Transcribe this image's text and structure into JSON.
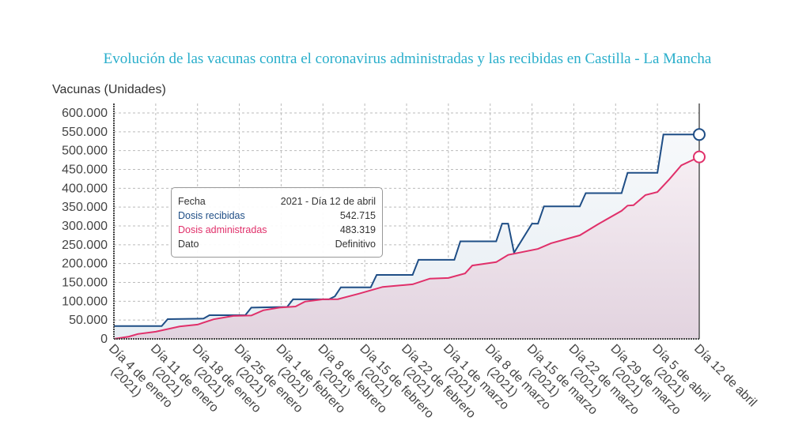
{
  "chart_data": {
    "type": "line",
    "title": "Evolución de las vacunas contra el coronavirus administradas y las recibidas en Castilla - La Mancha",
    "ylabel": "Vacunas (Unidades)",
    "xlabel": "",
    "ylim": [
      0,
      600000
    ],
    "xlim_days": [
      0,
      98
    ],
    "grid": true,
    "y_ticks": [
      {
        "value": 0,
        "label": "0"
      },
      {
        "value": 50000,
        "label": "50.000"
      },
      {
        "value": 100000,
        "label": "100.000"
      },
      {
        "value": 150000,
        "label": "150.000"
      },
      {
        "value": 200000,
        "label": "200.000"
      },
      {
        "value": 250000,
        "label": "250.000"
      },
      {
        "value": 300000,
        "label": "300.000"
      },
      {
        "value": 350000,
        "label": "350.000"
      },
      {
        "value": 400000,
        "label": "400.000"
      },
      {
        "value": 450000,
        "label": "450.000"
      },
      {
        "value": 500000,
        "label": "500.000"
      },
      {
        "value": 550000,
        "label": "550.000"
      },
      {
        "value": 600000,
        "label": "600.000"
      }
    ],
    "x_ticks": [
      {
        "day": 0,
        "line1": "Día 4 de enero",
        "line2": "(2021)"
      },
      {
        "day": 7,
        "line1": "Día 11 de enero",
        "line2": "(2021)"
      },
      {
        "day": 14,
        "line1": "Día 18 de enero",
        "line2": "(2021)"
      },
      {
        "day": 21,
        "line1": "Día 25 de enero",
        "line2": "(2021)"
      },
      {
        "day": 28,
        "line1": "Día 1 de febrero",
        "line2": "(2021)"
      },
      {
        "day": 35,
        "line1": "Día 8 de febrero",
        "line2": "(2021)"
      },
      {
        "day": 42,
        "line1": "Día 15 de febrero",
        "line2": "(2021)"
      },
      {
        "day": 49,
        "line1": "Día 22 de febrero",
        "line2": "(2021)"
      },
      {
        "day": 56,
        "line1": "Día 1 de marzo",
        "line2": "(2021)"
      },
      {
        "day": 63,
        "line1": "Día 8 de marzo",
        "line2": "(2021)"
      },
      {
        "day": 70,
        "line1": "Día 15 de marzo",
        "line2": "(2021)"
      },
      {
        "day": 77,
        "line1": "Día 22 de marzo",
        "line2": "(2021)"
      },
      {
        "day": 84,
        "line1": "Día 29 de marzo",
        "line2": "(2021)"
      },
      {
        "day": 91,
        "line1": "Día 5 de abril",
        "line2": "(2021)"
      },
      {
        "day": 98,
        "line1": "Día 12 de abril",
        "line2": ""
      }
    ],
    "series": [
      {
        "name": "Dosis recibidas",
        "color": "#1f4e86",
        "x": [
          0,
          8,
          9,
          15,
          16,
          22,
          23,
          29,
          30,
          36,
          37,
          38,
          43,
          44,
          50,
          51,
          57,
          58,
          64,
          65,
          66,
          67,
          70,
          71,
          72,
          78,
          79,
          85,
          86,
          91,
          92,
          98
        ],
        "y": [
          34000,
          34000,
          52500,
          54000,
          63000,
          63000,
          83000,
          85000,
          105000,
          105000,
          113000,
          137000,
          137000,
          170000,
          170000,
          210000,
          210000,
          259000,
          259000,
          306000,
          306000,
          229000,
          306000,
          306000,
          352000,
          352000,
          387000,
          387000,
          441000,
          441000,
          542715,
          542715
        ]
      },
      {
        "name": "Dosis administradas",
        "color": "#e0306a",
        "x": [
          0,
          2.5,
          4,
          7,
          11,
          14,
          16.7,
          20,
          23,
          25,
          27.7,
          30.4,
          32,
          35,
          37.5,
          41,
          45,
          47.2,
          50,
          52.9,
          56,
          58.8,
          60,
          64,
          66,
          71,
          73.2,
          78,
          81,
          85,
          86,
          87,
          89,
          91,
          93,
          95,
          98
        ],
        "y": [
          0,
          6000,
          13000,
          19000,
          33000,
          38000,
          52000,
          61000,
          62000,
          76000,
          83000,
          86000,
          99000,
          105000,
          105500,
          120000,
          138000,
          141000,
          145000,
          160000,
          161700,
          174000,
          195000,
          204000,
          223000,
          239000,
          254000,
          275000,
          304000,
          340000,
          354000,
          355000,
          382000,
          390000,
          424000,
          461000,
          483319
        ]
      }
    ]
  },
  "tooltip": {
    "rows": [
      {
        "label": "Fecha",
        "value": "2021 - Día 12 de abril"
      },
      {
        "label": "Dosis recibidas",
        "value": "542.715"
      },
      {
        "label": "Dosis administradas",
        "value": "483.319"
      },
      {
        "label": "Dato",
        "value": "Definitivo"
      }
    ]
  }
}
